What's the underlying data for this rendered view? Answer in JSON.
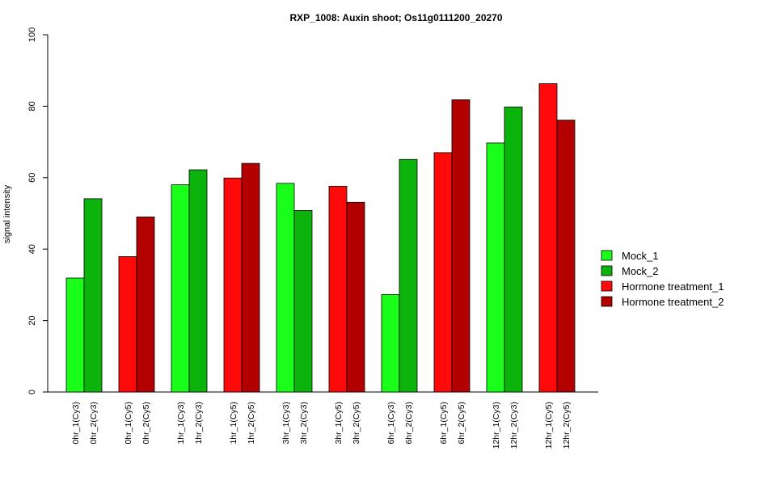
{
  "chart_data": {
    "type": "bar",
    "title": "RXP_1008: Auxin shoot; Os11g0111200_20270",
    "xlabel": "",
    "ylabel": "signal intensity",
    "ylim": [
      0,
      100
    ],
    "yticks": [
      0,
      20,
      40,
      60,
      80,
      100
    ],
    "grid": false,
    "legend_position": "right",
    "legend": [
      {
        "name": "Mock_1",
        "color": "#1AFF1A"
      },
      {
        "name": "Mock_2",
        "color": "#0CB30C"
      },
      {
        "name": "Hormone treatment_1",
        "color": "#FF0A0A"
      },
      {
        "name": "Hormone treatment_2",
        "color": "#B30000"
      }
    ],
    "bars": [
      {
        "label": "0hr_1(Cy3)",
        "value": 31.9,
        "color": "#1AFF1A"
      },
      {
        "label": "0hr_2(Cy3)",
        "value": 54.1,
        "color": "#0CB30C"
      },
      {
        "label": "0hr_1(Cy5)",
        "value": 37.9,
        "color": "#FF0A0A"
      },
      {
        "label": "0hr_2(Cy5)",
        "value": 49.0,
        "color": "#B30000"
      },
      {
        "label": "1hr_1(Cy3)",
        "value": 58.0,
        "color": "#1AFF1A"
      },
      {
        "label": "1hr_2(Cy3)",
        "value": 62.2,
        "color": "#0CB30C"
      },
      {
        "label": "1hr_1(Cy5)",
        "value": 59.9,
        "color": "#FF0A0A"
      },
      {
        "label": "1hr_2(Cy5)",
        "value": 64.0,
        "color": "#B30000"
      },
      {
        "label": "3hr_1(Cy3)",
        "value": 58.4,
        "color": "#1AFF1A"
      },
      {
        "label": "3hr_2(Cy3)",
        "value": 50.8,
        "color": "#0CB30C"
      },
      {
        "label": "3hr_1(Cy5)",
        "value": 57.6,
        "color": "#FF0A0A"
      },
      {
        "label": "3hr_2(Cy5)",
        "value": 53.1,
        "color": "#B30000"
      },
      {
        "label": "6hr_1(Cy3)",
        "value": 27.3,
        "color": "#1AFF1A"
      },
      {
        "label": "6hr_2(Cy3)",
        "value": 65.1,
        "color": "#0CB30C"
      },
      {
        "label": "6hr_1(Cy5)",
        "value": 67.0,
        "color": "#FF0A0A"
      },
      {
        "label": "6hr_2(Cy5)",
        "value": 81.8,
        "color": "#B30000"
      },
      {
        "label": "12hr_1(Cy3)",
        "value": 69.7,
        "color": "#1AFF1A"
      },
      {
        "label": "12hr_2(Cy3)",
        "value": 79.8,
        "color": "#0CB30C"
      },
      {
        "label": "12hr_1(Cy5)",
        "value": 86.3,
        "color": "#FF0A0A"
      },
      {
        "label": "12hr_2(Cy5)",
        "value": 76.1,
        "color": "#B30000"
      }
    ]
  }
}
